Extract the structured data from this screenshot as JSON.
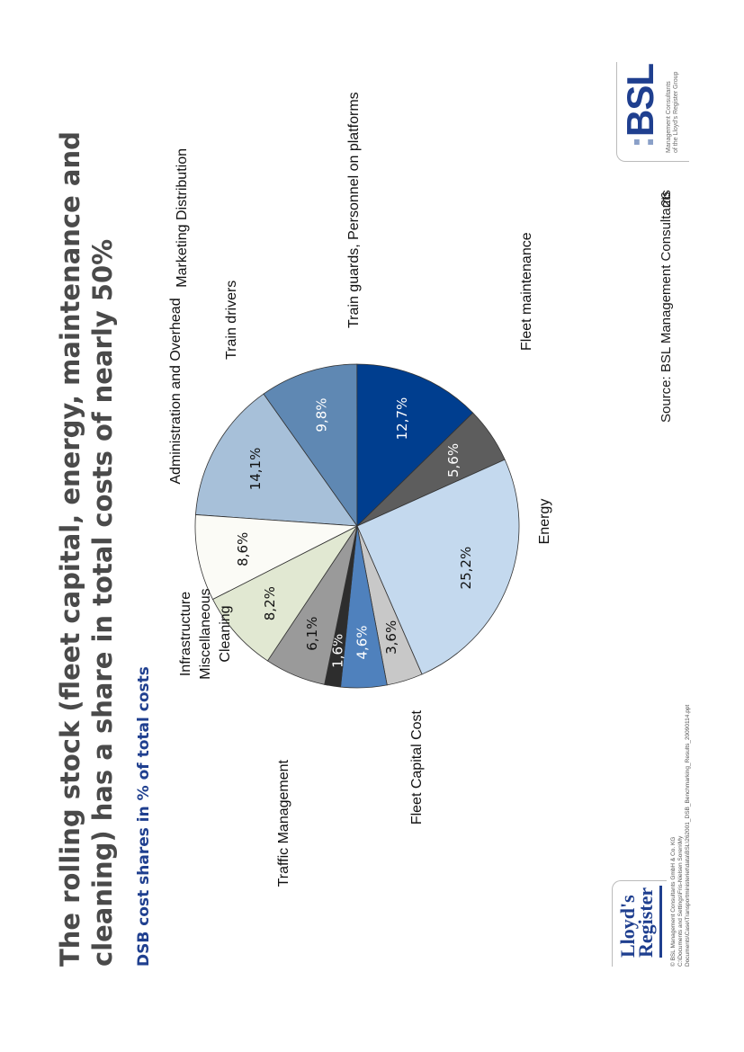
{
  "slide": {
    "title": "The rolling stock (fleet capital, energy, maintenance and cleaning) has a share in total costs of nearly 50%",
    "subtitle": "DSB cost shares in % of total costs",
    "source": "Source: BSL Management Consultants",
    "page_number": "26"
  },
  "logos": {
    "bsl": "BSL",
    "bsl_tagline_1": "Management Consultants",
    "bsl_tagline_2": "of the Lloyd's Register Group",
    "lloyds_line_1": "Lloyd's",
    "lloyds_line_2": "Register"
  },
  "footer": {
    "line1": "© BSL Management Consultants GmbH & Co. KG",
    "line2": "C:\\Documents and Settings\\Fris-Nielsen Soren\\My Documents\\Case\\Transportministeriet\\data\\BSL\\262001_DSB_Benchmarking_Results_20090114.ppt"
  },
  "chart_data": {
    "type": "pie",
    "title": "DSB cost shares in % of total costs",
    "slices": [
      {
        "label": "Train drivers",
        "value": 14.1,
        "value_label": "14,1%",
        "color": "#a7c0d9",
        "value_color": "#111111"
      },
      {
        "label": "Train guards, Personnel on platforms",
        "value": 9.8,
        "value_label": "9,8%",
        "color": "#5f88b3",
        "value_color": "#ffffff"
      },
      {
        "label": "Fleet maintenance",
        "value": 12.7,
        "value_label": "12,7%",
        "color": "#003e8f",
        "value_color": "#ffffff"
      },
      {
        "label": "Energy",
        "value": 5.6,
        "value_label": "5,6%",
        "color": "#5d5d5d",
        "value_color": "#ffffff"
      },
      {
        "label": "Fleet Capital Cost",
        "value": 25.2,
        "value_label": "25,2%",
        "color": "#c4d9ee",
        "value_color": "#111111"
      },
      {
        "label": "Traffic Management",
        "value": 3.6,
        "value_label": "3,6%",
        "color": "#c8c8c8",
        "value_color": "#111111"
      },
      {
        "label": "Cleaning",
        "value": 4.6,
        "value_label": "4,6%",
        "color": "#4f81bd",
        "value_color": "#ffffff"
      },
      {
        "label": "Miscellaneous",
        "value": 1.6,
        "value_label": "1,6%",
        "color": "#2d2d2d",
        "value_color": "#ffffff"
      },
      {
        "label": "Infrastructure",
        "value": 6.1,
        "value_label": "6,1%",
        "color": "#9a9a9a",
        "value_color": "#111111"
      },
      {
        "label": "Administration and Overhead",
        "value": 8.2,
        "value_label": "8,2%",
        "color": "#e1e8d2",
        "value_color": "#111111"
      },
      {
        "label": "Marketing Distribution",
        "value": 8.6,
        "value_label": "8,6%",
        "color": "#fbfbf6",
        "value_color": "#111111"
      }
    ]
  }
}
